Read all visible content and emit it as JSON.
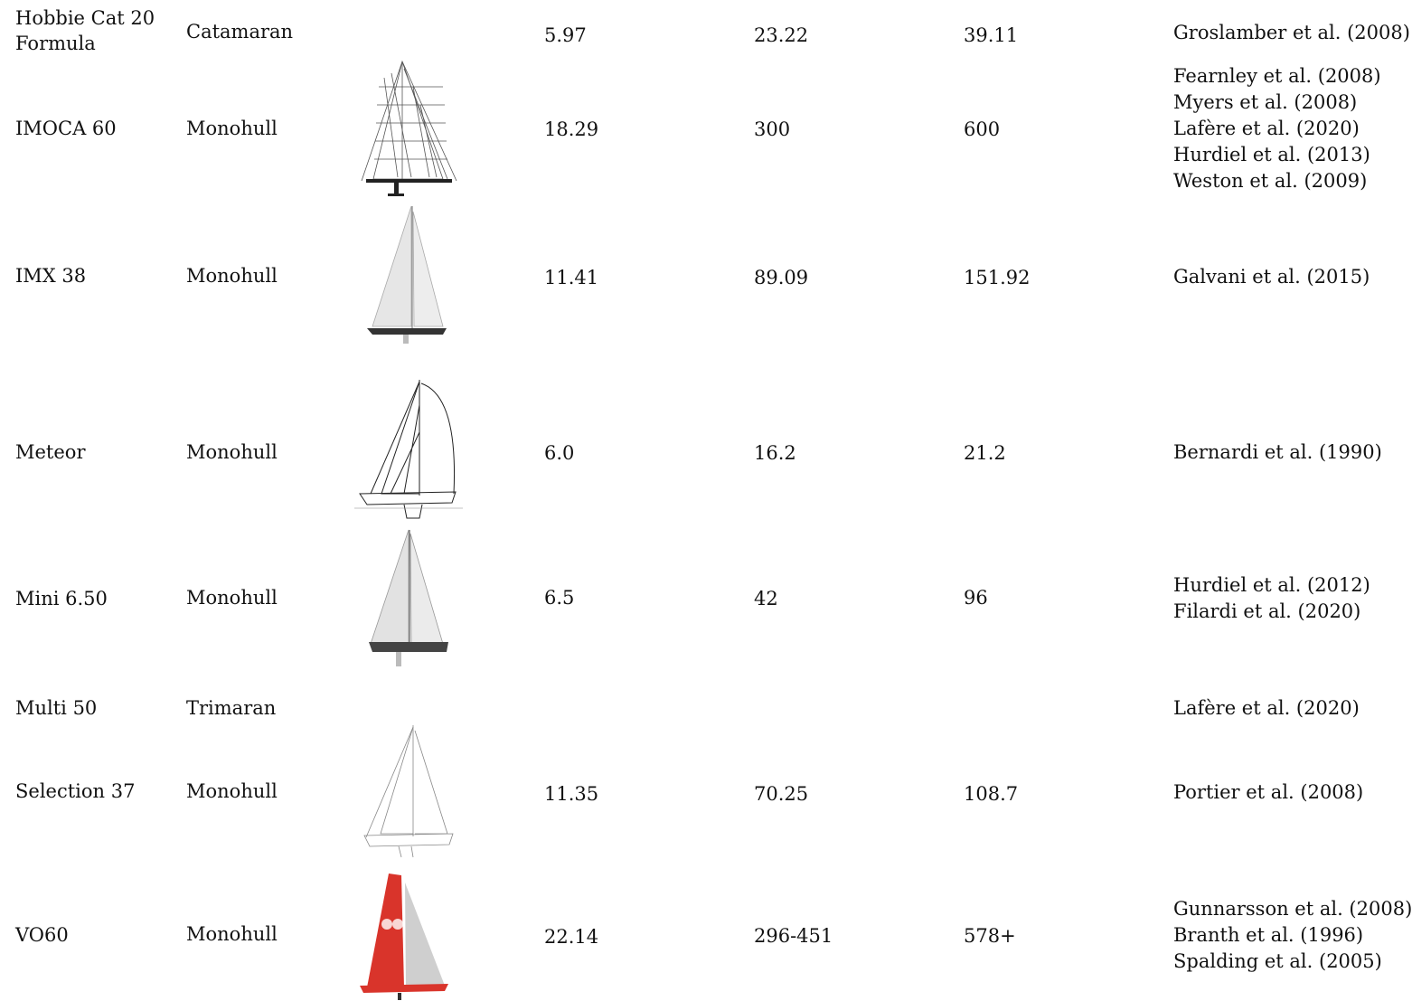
{
  "rows": [
    {
      "name": "Hobbie Cat 20\nFormula",
      "name1": "Hobbie Cat 20",
      "name2": "Formula",
      "type": "Catamaran",
      "length": "5.97",
      "area_a": "23.22",
      "area_b": "39.11",
      "refs": [
        "Groslamber et al. (2008)"
      ],
      "image": "none"
    },
    {
      "name1": "IMOCA 60",
      "type": "Monohull",
      "length": "18.29",
      "area_a": "300",
      "area_b": "600",
      "refs": [
        "Fearnley et al. (2008)",
        "Myers et al. (2008)",
        "Lafère et al. (2020)",
        "Hurdiel et al. (2013)",
        "Weston et al. (2009)"
      ],
      "image": "imoca-sail-plan"
    },
    {
      "name1": "IMX 38",
      "type": "Monohull",
      "length": "11.41",
      "area_a": "89.09",
      "area_b": "151.92",
      "refs": [
        "Galvani et al. (2015)"
      ],
      "image": "imx38-sail-plan"
    },
    {
      "name1": "Meteor",
      "type": "Monohull",
      "length": "6.0",
      "area_a": "16.2",
      "area_b": "21.2",
      "refs": [
        "Bernardi et al. (1990)"
      ],
      "image": "meteor-sail-plan"
    },
    {
      "name1": "Mini 6.50",
      "type": "Monohull",
      "length": "6.5",
      "area_a": "42",
      "area_b": "96",
      "refs": [
        "Hurdiel et al. (2012)",
        "Filardi et al. (2020)"
      ],
      "image": "mini650-sail-plan"
    },
    {
      "name1": "Multi 50",
      "type": "Trimaran",
      "length": "",
      "area_a": "",
      "area_b": "",
      "refs": [
        "Lafère et al. (2020)"
      ],
      "image": "none"
    },
    {
      "name1": "Selection 37",
      "type": "Monohull",
      "length": "11.35",
      "area_a": "70.25",
      "area_b": "108.7",
      "refs": [
        "Portier et al. (2008)"
      ],
      "image": "selection37-sail-plan"
    },
    {
      "name1": "VO60",
      "type": "Monohull",
      "length": "22.14",
      "area_a": "296-451",
      "area_b": "578+",
      "refs": [
        "Gunnarsson et al. (2008)",
        "Branth et al. (1996)",
        "Spalding et al. (2005)"
      ],
      "image": "vo60-sail-plan"
    }
  ],
  "colors": {
    "text": "#111111",
    "vo60_sail": "#d9342b",
    "hull": "#333333"
  }
}
